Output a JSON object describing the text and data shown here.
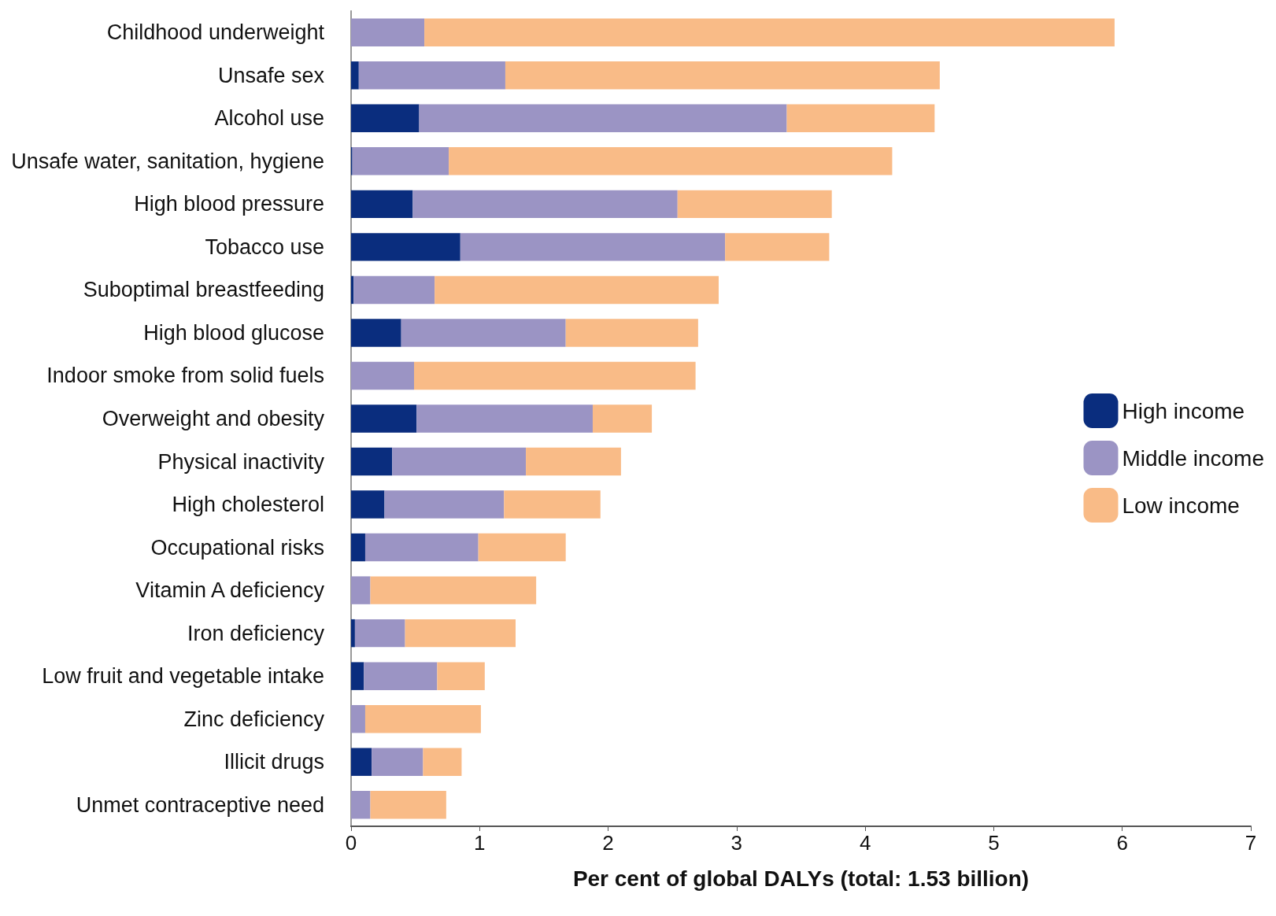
{
  "chart_data": {
    "type": "bar",
    "orientation": "horizontal",
    "stacked": true,
    "xlabel": "Per cent of global DALYs (total: 1.53 billion)",
    "categories": [
      "Childhood underweight",
      "Unsafe sex",
      "Alcohol use",
      "Unsafe water, sanitation, hygiene",
      "High blood pressure",
      "Tobacco use",
      "Suboptimal breastfeeding",
      "High blood glucose",
      "Indoor smoke from solid fuels",
      "Overweight and obesity",
      "Physical inactivity",
      "High cholesterol",
      "Occupational risks",
      "Vitamin A deficiency",
      "Iron deficiency",
      "Low fruit and vegetable intake",
      "Zinc deficiency",
      "Illicit drugs",
      "Unmet contraceptive need"
    ],
    "series": [
      {
        "name": "High income",
        "color": "#0a2d7e",
        "values": [
          0,
          0.06,
          0.53,
          0.01,
          0.48,
          0.85,
          0.02,
          0.39,
          0,
          0.51,
          0.32,
          0.26,
          0.11,
          0,
          0.03,
          0.1,
          0,
          0.16,
          0
        ]
      },
      {
        "name": "Middle income",
        "color": "#9b94c4",
        "values": [
          0.57,
          1.14,
          2.86,
          0.75,
          2.06,
          2.06,
          0.63,
          1.28,
          0.49,
          1.37,
          1.04,
          0.93,
          0.88,
          0.15,
          0.39,
          0.57,
          0.11,
          0.4,
          0.15
        ]
      },
      {
        "name": "Low income",
        "color": "#f9bb87",
        "values": [
          5.37,
          3.38,
          1.15,
          3.45,
          1.2,
          0.81,
          2.21,
          1.03,
          2.19,
          0.46,
          0.74,
          0.75,
          0.68,
          1.29,
          0.86,
          0.37,
          0.9,
          0.3,
          0.59
        ]
      }
    ],
    "xlim": [
      0,
      7
    ],
    "xticks": [
      0,
      1,
      2,
      3,
      4,
      5,
      6,
      7
    ],
    "grid": false,
    "legend": "right"
  }
}
